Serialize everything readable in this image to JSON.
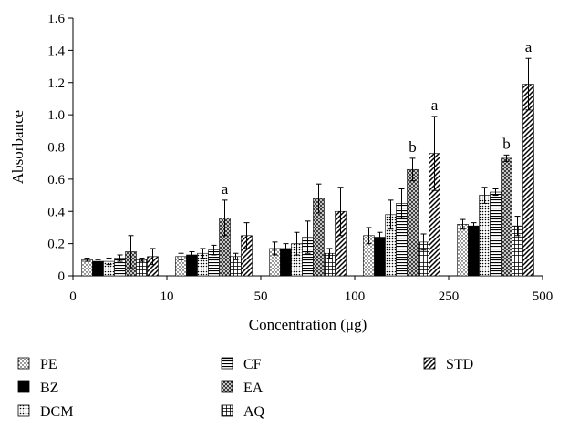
{
  "chart_data": {
    "type": "bar",
    "xlabel": "Concentration (μg)",
    "ylabel": "Absorbance",
    "ylim": [
      0,
      1.6
    ],
    "yticks": [
      "0",
      "0.2",
      "0.4",
      "0.6",
      "0.8",
      "1.0",
      "1.2",
      "1.4",
      "1.6"
    ],
    "categories": [
      "10",
      "50",
      "100",
      "250",
      "500"
    ],
    "xticks": [
      "0",
      "10",
      "50",
      "100",
      "250",
      "500"
    ],
    "grid": false,
    "legend_position": "bottom",
    "series": [
      {
        "name": "PE",
        "pattern": "dots",
        "values": [
          0.1,
          0.12,
          0.17,
          0.25,
          0.32
        ],
        "errors": [
          0.01,
          0.02,
          0.04,
          0.05,
          0.03
        ]
      },
      {
        "name": "BZ",
        "pattern": "solid",
        "values": [
          0.09,
          0.13,
          0.17,
          0.24,
          0.31
        ],
        "errors": [
          0.01,
          0.02,
          0.03,
          0.03,
          0.02
        ]
      },
      {
        "name": "DCM",
        "pattern": "dots-dense",
        "values": [
          0.09,
          0.14,
          0.2,
          0.38,
          0.5
        ],
        "errors": [
          0.02,
          0.03,
          0.07,
          0.09,
          0.05
        ]
      },
      {
        "name": "CF",
        "pattern": "hlines",
        "values": [
          0.11,
          0.16,
          0.24,
          0.45,
          0.52
        ],
        "errors": [
          0.02,
          0.03,
          0.1,
          0.09,
          0.02
        ]
      },
      {
        "name": "EA",
        "pattern": "crosshatch",
        "values": [
          0.15,
          0.36,
          0.48,
          0.66,
          0.73
        ],
        "errors": [
          0.1,
          0.11,
          0.09,
          0.07,
          0.02
        ]
      },
      {
        "name": "AQ",
        "pattern": "grid",
        "values": [
          0.1,
          0.12,
          0.14,
          0.21,
          0.31
        ],
        "errors": [
          0.01,
          0.02,
          0.03,
          0.05,
          0.06
        ]
      },
      {
        "name": "STD",
        "pattern": "diagonal",
        "values": [
          0.12,
          0.25,
          0.4,
          0.76,
          1.19
        ],
        "errors": [
          0.05,
          0.08,
          0.15,
          0.23,
          0.16
        ]
      }
    ],
    "annotations": [
      {
        "category": "50",
        "series": "EA",
        "text": "a"
      },
      {
        "category": "250",
        "series": "EA",
        "text": "b"
      },
      {
        "category": "250",
        "series": "STD",
        "text": "a"
      },
      {
        "category": "500",
        "series": "EA",
        "text": "b"
      },
      {
        "category": "500",
        "series": "STD",
        "text": "a"
      }
    ]
  }
}
